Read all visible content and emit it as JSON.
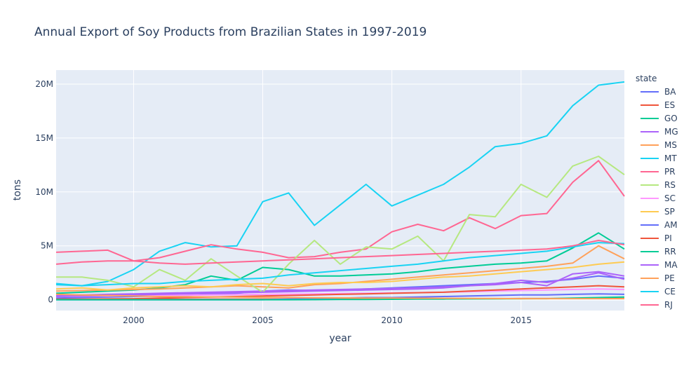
{
  "chart_data": {
    "type": "line",
    "title": "Annual Export of Soy Products from Brazilian States in 1997-2019",
    "xlabel": "year",
    "ylabel": "tons",
    "xlim": [
      1997,
      2019
    ],
    "ylim": [
      -1000000,
      21300000
    ],
    "x_ticks": [
      2000,
      2005,
      2010,
      2015
    ],
    "y_ticks": [
      0,
      5000000,
      10000000,
      15000000,
      20000000
    ],
    "y_tick_labels": [
      "0",
      "5M",
      "10M",
      "15M",
      "20M"
    ],
    "grid": true,
    "legend_title": "state",
    "legend_placement": "right",
    "x": [
      1997,
      1998,
      1999,
      2000,
      2001,
      2002,
      2003,
      2004,
      2005,
      2006,
      2007,
      2008,
      2009,
      2010,
      2011,
      2012,
      2013,
      2014,
      2015,
      2016,
      2017,
      2018,
      2019
    ],
    "series": [
      {
        "name": "BA",
        "color": "#636efa",
        "values": [
          150000,
          200000,
          250000,
          300000,
          350000,
          400000,
          500000,
          600000,
          800000,
          900000,
          850000,
          900000,
          1000000,
          1100000,
          1200000,
          1300000,
          1400000,
          1500000,
          1600000,
          1700000,
          1900000,
          2200000,
          2000000
        ]
      },
      {
        "name": "ES",
        "color": "#ef553b",
        "values": [
          20000,
          20000,
          30000,
          30000,
          40000,
          40000,
          50000,
          50000,
          60000,
          60000,
          70000,
          70000,
          80000,
          80000,
          90000,
          90000,
          100000,
          100000,
          110000,
          110000,
          120000,
          130000,
          120000
        ]
      },
      {
        "name": "GO",
        "color": "#00cc96",
        "values": [
          600000,
          700000,
          800000,
          900000,
          1100000,
          1400000,
          2200000,
          1800000,
          3000000,
          2800000,
          2200000,
          2200000,
          2300000,
          2400000,
          2600000,
          2900000,
          3100000,
          3300000,
          3400000,
          3600000,
          4800000,
          6200000,
          4700000
        ]
      },
      {
        "name": "MG",
        "color": "#ab63fa",
        "values": [
          400000,
          450000,
          500000,
          550000,
          600000,
          650000,
          700000,
          750000,
          800000,
          850000,
          900000,
          950000,
          1000000,
          1050000,
          1100000,
          1200000,
          1300000,
          1400000,
          1600000,
          1300000,
          2400000,
          2600000,
          2200000
        ]
      },
      {
        "name": "MS",
        "color": "#ffa15a",
        "values": [
          800000,
          850000,
          900000,
          950000,
          1000000,
          1100000,
          1200000,
          1300000,
          1200000,
          1100000,
          1400000,
          1500000,
          1700000,
          1900000,
          2100000,
          2300000,
          2500000,
          2700000,
          2900000,
          3100000,
          3400000,
          5000000,
          3800000
        ]
      },
      {
        "name": "MT",
        "color": "#19d3f3",
        "values": [
          1400000,
          1300000,
          1700000,
          2800000,
          4500000,
          5300000,
          4900000,
          5000000,
          9100000,
          9900000,
          6900000,
          8800000,
          10700000,
          8700000,
          9700000,
          10700000,
          12300000,
          14200000,
          14500000,
          15200000,
          18000000,
          19900000,
          20200000
        ]
      },
      {
        "name": "PR",
        "color": "#ff6692",
        "values": [
          3300000,
          3500000,
          3600000,
          3600000,
          3900000,
          4500000,
          5100000,
          4700000,
          4400000,
          3900000,
          4000000,
          4400000,
          4700000,
          6300000,
          7000000,
          6400000,
          7600000,
          6600000,
          7800000,
          8000000,
          10900000,
          12900000,
          9600000
        ]
      },
      {
        "name": "RS",
        "color": "#b6e880",
        "values": [
          2100000,
          2100000,
          1800000,
          1200000,
          2800000,
          1800000,
          3800000,
          2200000,
          700000,
          3300000,
          5500000,
          3300000,
          4900000,
          4700000,
          5900000,
          3600000,
          7900000,
          7700000,
          10700000,
          9500000,
          12400000,
          13300000,
          11600000
        ]
      },
      {
        "name": "SC",
        "color": "#ff97ff",
        "values": [
          300000,
          320000,
          350000,
          380000,
          400000,
          420000,
          450000,
          480000,
          500000,
          520000,
          550000,
          580000,
          600000,
          630000,
          660000,
          700000,
          750000,
          800000,
          850000,
          900000,
          950000,
          1000000,
          950000
        ]
      },
      {
        "name": "SP",
        "color": "#fecb52",
        "values": [
          1000000,
          1100000,
          900000,
          1100000,
          1200000,
          1300000,
          1200000,
          1400000,
          1500000,
          1300000,
          1500000,
          1600000,
          1600000,
          1700000,
          1900000,
          2100000,
          2200000,
          2400000,
          2600000,
          2800000,
          3000000,
          3300000,
          3500000
        ]
      },
      {
        "name": "AM",
        "color": "#636efa",
        "values": [
          0,
          0,
          0,
          0,
          0,
          0,
          0,
          0,
          0,
          50000,
          100000,
          150000,
          200000,
          200000,
          250000,
          300000,
          350000,
          400000,
          450000,
          450000,
          500000,
          550000,
          500000
        ]
      },
      {
        "name": "PI",
        "color": "#ef553b",
        "values": [
          50000,
          60000,
          80000,
          100000,
          150000,
          200000,
          250000,
          300000,
          350000,
          400000,
          450000,
          500000,
          550000,
          600000,
          650000,
          700000,
          800000,
          900000,
          1000000,
          1100000,
          1200000,
          1300000,
          1200000
        ]
      },
      {
        "name": "RR",
        "color": "#00cc96",
        "values": [
          0,
          0,
          0,
          0,
          0,
          0,
          0,
          0,
          0,
          0,
          10000,
          20000,
          30000,
          40000,
          50000,
          60000,
          70000,
          80000,
          90000,
          100000,
          150000,
          200000,
          250000
        ]
      },
      {
        "name": "MA",
        "color": "#ab63fa",
        "values": [
          300000,
          350000,
          400000,
          450000,
          500000,
          550000,
          600000,
          650000,
          700000,
          750000,
          800000,
          850000,
          900000,
          950000,
          1000000,
          1100000,
          1300000,
          1500000,
          1800000,
          1600000,
          2000000,
          2500000,
          1900000
        ]
      },
      {
        "name": "PE",
        "color": "#ffa15a",
        "values": [
          500000,
          450000,
          400000,
          350000,
          300000,
          280000,
          260000,
          240000,
          220000,
          200000,
          180000,
          170000,
          160000,
          150000,
          140000,
          130000,
          120000,
          110000,
          100000,
          100000,
          100000,
          100000,
          100000
        ]
      },
      {
        "name": "CE",
        "color": "#19d3f3",
        "values": [
          1500000,
          1300000,
          1400000,
          1500000,
          1500000,
          1700000,
          1800000,
          1900000,
          2000000,
          2300000,
          2500000,
          2700000,
          2900000,
          3100000,
          3300000,
          3600000,
          3900000,
          4100000,
          4300000,
          4500000,
          4900000,
          5300000,
          5200000
        ]
      },
      {
        "name": "RJ",
        "color": "#ff6692",
        "values": [
          4400000,
          4500000,
          4600000,
          3600000,
          3400000,
          3300000,
          3400000,
          3500000,
          3600000,
          3700000,
          3800000,
          3900000,
          4000000,
          4100000,
          4200000,
          4300000,
          4400000,
          4500000,
          4600000,
          4700000,
          5000000,
          5500000,
          5100000
        ]
      }
    ]
  }
}
